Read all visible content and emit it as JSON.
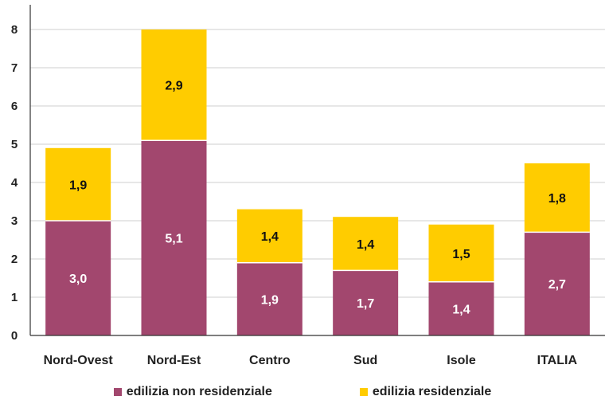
{
  "chart_data": {
    "type": "bar",
    "stacked": true,
    "categories": [
      "Nord-Ovest",
      "Nord-Est",
      "Centro",
      "Sud",
      "Isole",
      "ITALIA"
    ],
    "series": [
      {
        "name": "edilizia non residenziale",
        "color": "#a2476e",
        "values": [
          3.0,
          5.1,
          1.9,
          1.7,
          1.4,
          2.7
        ],
        "labels": [
          "3,0",
          "5,1",
          "1,9",
          "1,7",
          "1,4",
          "2,7"
        ]
      },
      {
        "name": "edilizia residenziale",
        "color": "#ffcc00",
        "values": [
          1.9,
          2.9,
          1.4,
          1.4,
          1.5,
          1.8
        ],
        "labels": [
          "1,9",
          "2,9",
          "1,4",
          "1,4",
          "1,5",
          "1,8"
        ]
      }
    ],
    "ylim": [
      0,
      8
    ],
    "yticks": [
      "0",
      "1",
      "2",
      "3",
      "4",
      "5",
      "6",
      "7",
      "8"
    ],
    "grid": true,
    "legend_position": "bottom",
    "title": "",
    "xlabel": "",
    "ylabel": ""
  }
}
